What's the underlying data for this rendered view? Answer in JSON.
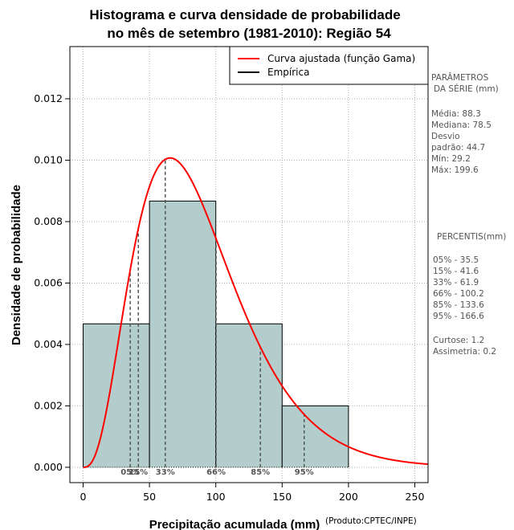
{
  "chart_data": {
    "type": "bar",
    "title_line1": "Histograma e curva densidade de probabilidade",
    "title_line2": "no mês de setembro (1981-2010): Região 54",
    "xlabel": "Precipitação acumulada (mm)",
    "ylabel": "Densidade de probabilidade",
    "credit": "(Produto:CPTEC/INPE)",
    "xlim": [
      -10,
      260
    ],
    "ylim": [
      -0.0005,
      0.0137
    ],
    "x_ticks": [
      0,
      50,
      100,
      150,
      200,
      250
    ],
    "y_ticks": [
      0.0,
      0.002,
      0.004,
      0.006,
      0.008,
      0.01,
      0.012
    ],
    "y_tick_labels": [
      "0.000",
      "0.002",
      "0.004",
      "0.006",
      "0.008",
      "0.010",
      "0.012"
    ],
    "grid": true,
    "histogram": {
      "bins": [
        [
          0,
          50
        ],
        [
          50,
          100
        ],
        [
          100,
          150
        ],
        [
          150,
          200
        ]
      ],
      "density": [
        0.00467,
        0.00867,
        0.00467,
        0.002
      ],
      "fill_color": "#b3cdcd"
    },
    "gamma_fit": {
      "shape": 3.9,
      "scale": 22.6,
      "color": "#ff0000"
    },
    "percentiles": [
      {
        "label": "05%",
        "x": 35.5
      },
      {
        "label": "15%",
        "x": 41.6
      },
      {
        "label": "33%",
        "x": 61.9
      },
      {
        "label": "66%",
        "x": 100.2
      },
      {
        "label": "85%",
        "x": 133.6
      },
      {
        "label": "95%",
        "x": 166.6
      }
    ],
    "legend": [
      {
        "label": "Curva ajustada (função Gama)",
        "color": "#ff0000"
      },
      {
        "label": "Empírica",
        "color": "#000000"
      }
    ]
  },
  "side_panel": {
    "params_title_1": "PARÂMETROS",
    "params_title_2": "DA SÉRIE (mm)",
    "media": "Média:  88.3",
    "mediana": "Mediana:  78.5",
    "desvio_1": "Desvio",
    "desvio_2": "padrão:  44.7",
    "min": "Mín:  29.2",
    "max": "Máx:  199.6",
    "percentis_title": "PERCENTIS(mm)",
    "p05": "05% -  35.5",
    "p15": "15% -  41.6",
    "p33": "33% -  61.9",
    "p66": "66% -  100.2",
    "p85": "85% -  133.6",
    "p95": "95% -  166.6",
    "curtose": "Curtose:  1.2",
    "assimetria": "Assimetria:  0.2"
  }
}
